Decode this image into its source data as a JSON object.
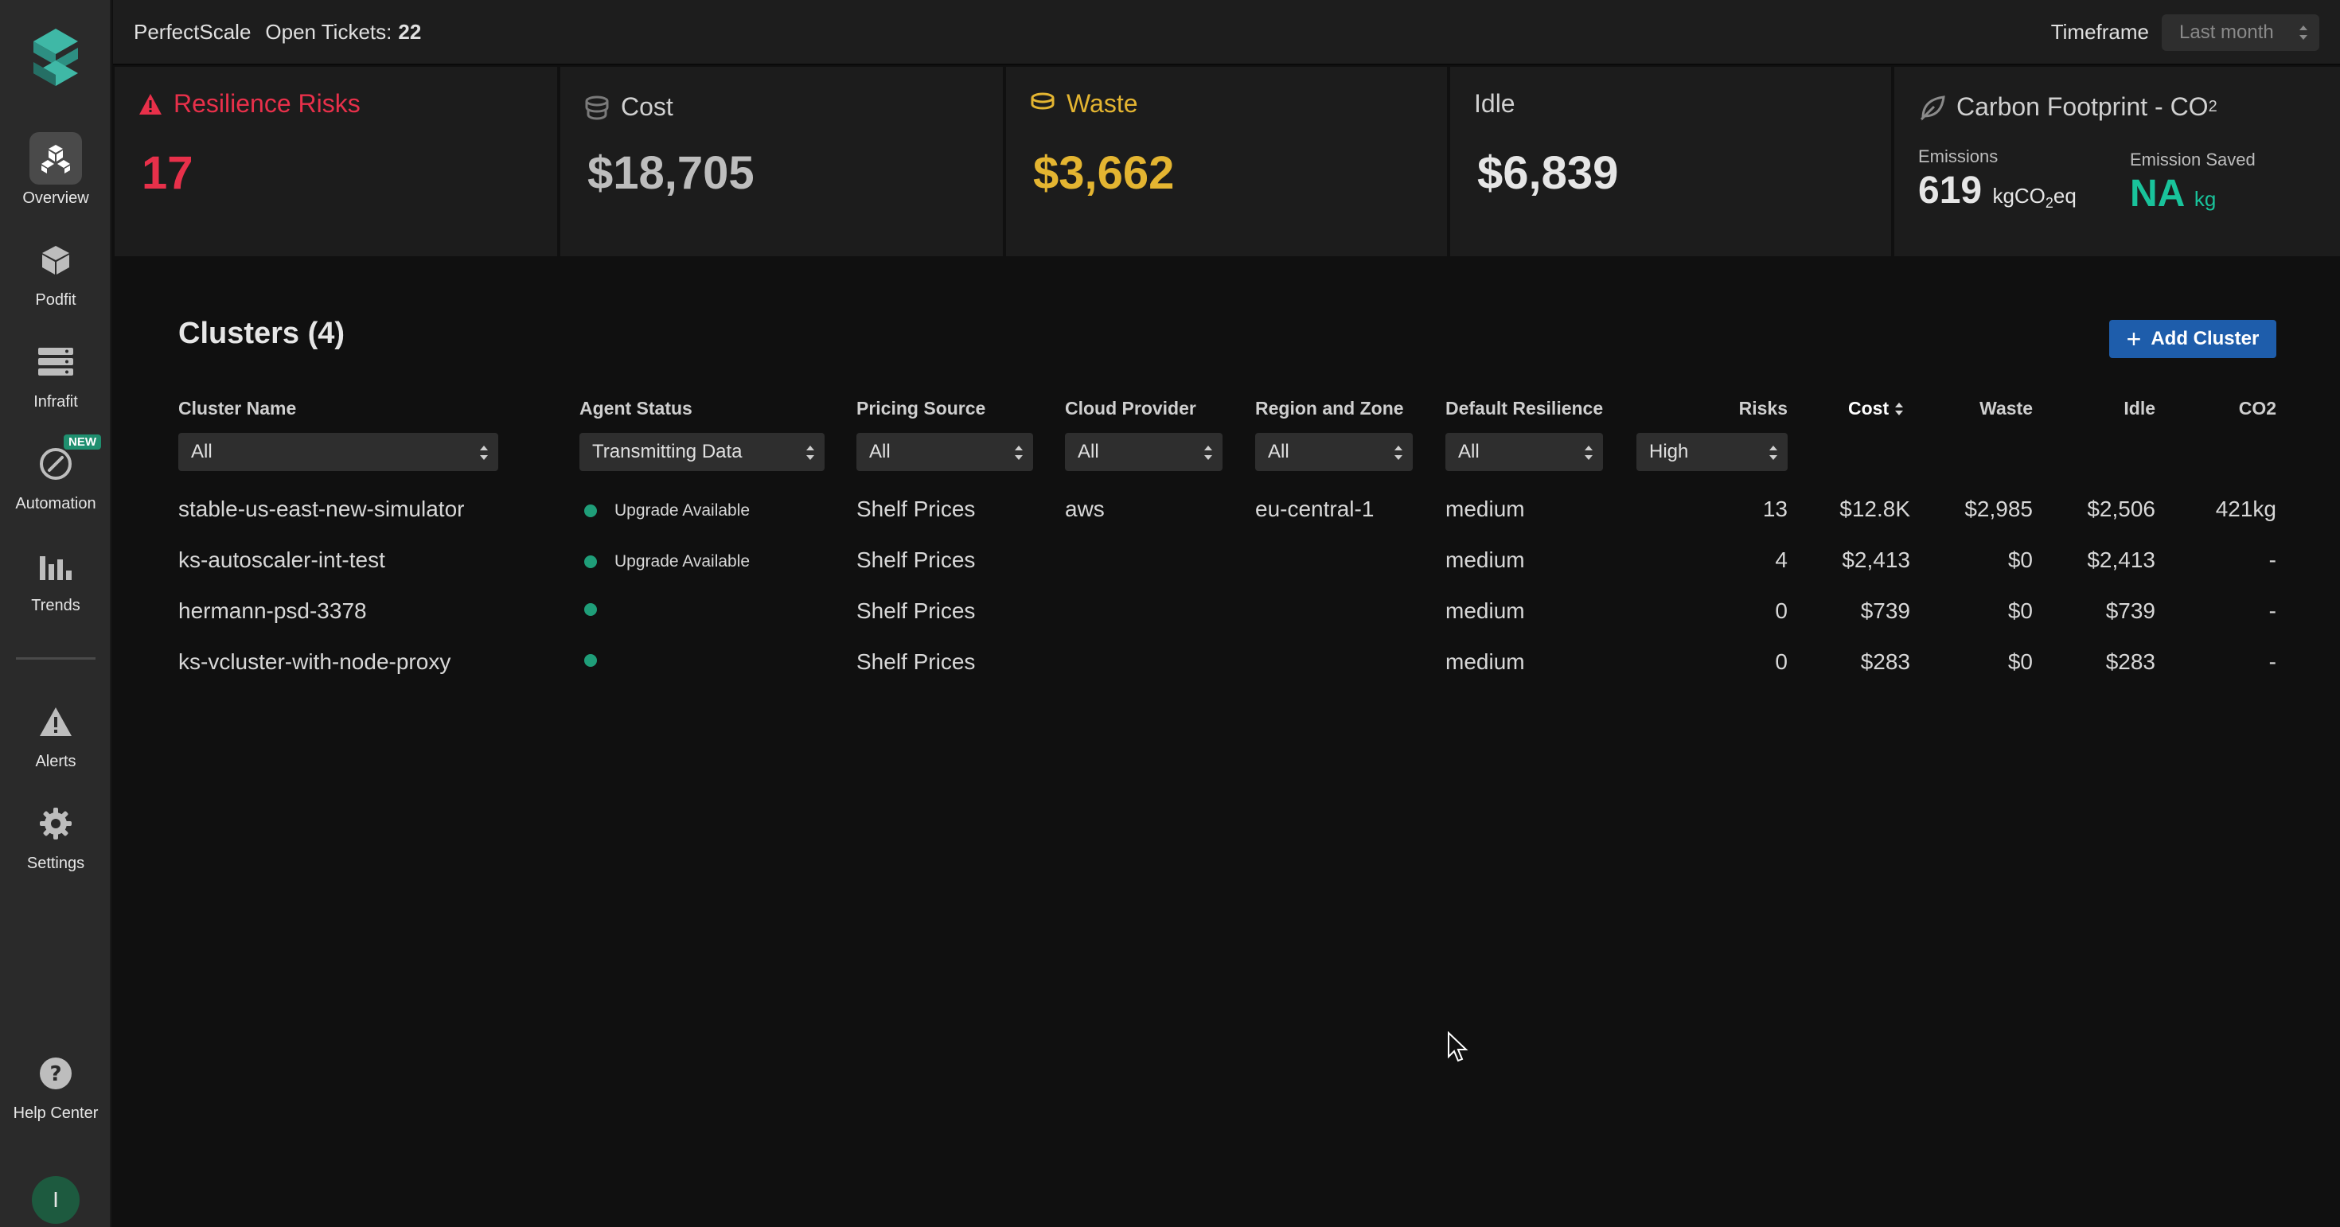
{
  "sidebar": {
    "items": [
      {
        "label": "Overview",
        "icon": "cubes-icon"
      },
      {
        "label": "Podfit",
        "icon": "cube-icon"
      },
      {
        "label": "Infrafit",
        "icon": "server-icon"
      },
      {
        "label": "Automation",
        "icon": "automation-icon",
        "badge": "NEW"
      },
      {
        "label": "Trends",
        "icon": "bar-chart-icon"
      },
      {
        "label": "Alerts",
        "icon": "warning-icon"
      },
      {
        "label": "Settings",
        "icon": "gear-icon"
      },
      {
        "label": "Help Center",
        "icon": "help-icon"
      }
    ],
    "avatar_initial": "I"
  },
  "topbar": {
    "brand": "PerfectScale",
    "tickets_label": "Open Tickets:",
    "tickets_count": "22",
    "timeframe_label": "Timeframe",
    "timeframe_value": "Last month"
  },
  "cards": {
    "resilience": {
      "title": "Resilience Risks",
      "value": "17"
    },
    "cost": {
      "title": "Cost",
      "value": "$18,705"
    },
    "waste": {
      "title": "Waste",
      "value": "$3,662"
    },
    "idle": {
      "title": "Idle",
      "value": "$6,839"
    },
    "carbon": {
      "title": "Carbon Footprint - CO",
      "title_sub": "2",
      "emissions_label": "Emissions",
      "emissions_value": "619",
      "emissions_unit_pre": "kgCO",
      "emissions_unit_sub": "2",
      "emissions_unit_post": "eq",
      "saved_label": "Emission Saved",
      "saved_value": "NA",
      "saved_unit": "kg"
    }
  },
  "clusters": {
    "title": "Clusters (4)",
    "add_button": "Add Cluster",
    "columns": {
      "name": "Cluster Name",
      "agent": "Agent Status",
      "pricing": "Pricing Source",
      "cloud": "Cloud Provider",
      "region": "Region and Zone",
      "resilience": "Default Resilience",
      "risks": "Risks",
      "cost": "Cost",
      "waste": "Waste",
      "idle": "Idle",
      "co2": "CO2"
    },
    "filters": {
      "name": "All",
      "agent": "Transmitting Data",
      "pricing": "All",
      "cloud": "All",
      "region": "All",
      "resilience": "All",
      "risks": "High"
    },
    "rows": [
      {
        "name": "stable-us-east-new-simulator",
        "agent": "Upgrade Available",
        "pricing": "Shelf Prices",
        "cloud": "aws",
        "region": "eu-central-1",
        "resilience": "medium",
        "risks": "13",
        "cost": "$12.8K",
        "waste": "$2,985",
        "idle": "$2,506",
        "co2": "421kg"
      },
      {
        "name": "ks-autoscaler-int-test",
        "agent": "Upgrade Available",
        "pricing": "Shelf Prices",
        "cloud": "",
        "region": "",
        "resilience": "medium",
        "risks": "4",
        "cost": "$2,413",
        "waste": "$0",
        "idle": "$2,413",
        "co2": "-"
      },
      {
        "name": "hermann-psd-3378",
        "agent": "",
        "pricing": "Shelf Prices",
        "cloud": "",
        "region": "",
        "resilience": "medium",
        "risks": "0",
        "cost": "$739",
        "waste": "$0",
        "idle": "$739",
        "co2": "-"
      },
      {
        "name": "ks-vcluster-with-node-proxy",
        "agent": "",
        "pricing": "Shelf Prices",
        "cloud": "",
        "region": "",
        "resilience": "medium",
        "risks": "0",
        "cost": "$283",
        "waste": "$0",
        "idle": "$283",
        "co2": "-"
      }
    ]
  },
  "colors": {
    "red": "#e8304a",
    "gold": "#e4b531",
    "teal": "#19c39b",
    "accent_blue": "#1e5dab",
    "status_green": "#1f9e79"
  }
}
